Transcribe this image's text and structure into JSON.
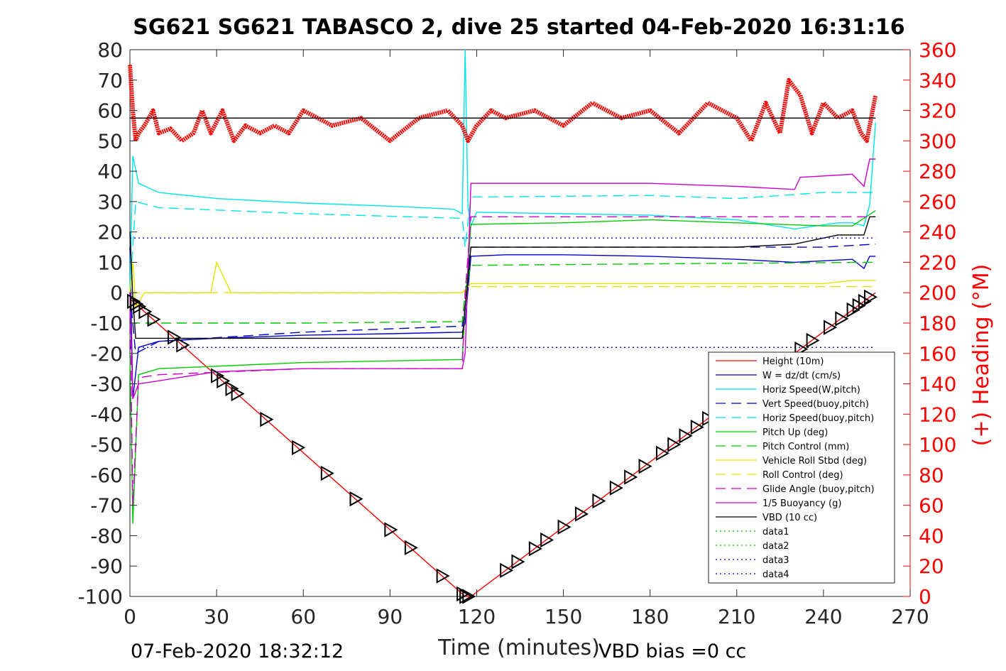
{
  "title": "SG621 SG621 TABASCO 2, dive 25 started 04-Feb-2020 16:31:16",
  "footer": {
    "timestamp": "07-Feb-2020 18:32:12",
    "vbd_bias": "VBD bias =0 cc"
  },
  "colors": {
    "right_axis": "#ff0000",
    "axis": "#262626",
    "red": "#ff0000",
    "blue": "#0000cc",
    "cyan": "#00e5e5",
    "green": "#00cc00",
    "yellow": "#e5e500",
    "magenta": "#cc00cc",
    "black": "#000000"
  },
  "chart_data": {
    "type": "line",
    "title": "SG621 SG621 TABASCO 2, dive 25 started 04-Feb-2020 16:31:16",
    "xlabel": "Time (minutes)",
    "ylabel_right": "(+) Heading (°M)",
    "xlim": [
      0,
      270
    ],
    "ylim": [
      -100,
      80
    ],
    "ylim_right": [
      0,
      360
    ],
    "xticks": [
      "0",
      "30",
      "60",
      "90",
      "120",
      "150",
      "180",
      "210",
      "240",
      "270"
    ],
    "yticks": [
      "80",
      "70",
      "60",
      "50",
      "40",
      "30",
      "20",
      "10",
      "0",
      "-10",
      "-20",
      "-30",
      "-40",
      "-50",
      "-60",
      "-70",
      "-80",
      "-90",
      "-100"
    ],
    "yticks_right": [
      "360",
      "340",
      "320",
      "300",
      "280",
      "260",
      "240",
      "220",
      "200",
      "180",
      "160",
      "140",
      "120",
      "100",
      "80",
      "60",
      "40",
      "20",
      "0"
    ],
    "legend_position": "lower-right",
    "legend": [
      {
        "label": "Height (10m)",
        "color": "#ff0000",
        "dash": "solid"
      },
      {
        "label": "W = dz/dt (cm/s)",
        "color": "#0000cc",
        "dash": "solid"
      },
      {
        "label": "Horiz Speed(W,pitch)",
        "color": "#00e5e5",
        "dash": "solid"
      },
      {
        "label": "Vert Speed(buoy,pitch)",
        "color": "#0000cc",
        "dash": "dashed"
      },
      {
        "label": "Horiz Speed(buoy,pitch)",
        "color": "#00e5e5",
        "dash": "dashed"
      },
      {
        "label": "Pitch Up (deg)",
        "color": "#00cc00",
        "dash": "solid"
      },
      {
        "label": "Pitch Control (mm)",
        "color": "#00cc00",
        "dash": "dashed"
      },
      {
        "label": "Vehicle Roll Stbd (deg)",
        "color": "#e5e500",
        "dash": "solid"
      },
      {
        "label": "Roll Control (deg)",
        "color": "#e5e500",
        "dash": "dashed"
      },
      {
        "label": "Glide Angle (buoy,pitch)",
        "color": "#cc00cc",
        "dash": "dashed"
      },
      {
        "label": "1/5 Buoyancy (g)",
        "color": "#cc00cc",
        "dash": "solid"
      },
      {
        "label": "VBD (10 cc)",
        "color": "#000000",
        "dash": "solid"
      },
      {
        "label": "data1",
        "color": "#00cc00",
        "dash": "dotted"
      },
      {
        "label": "data2",
        "color": "#00cc00",
        "dash": "dotted"
      },
      {
        "label": "data3",
        "color": "#0000cc",
        "dash": "dotted"
      },
      {
        "label": "data4",
        "color": "#0000cc",
        "dash": "dotted"
      }
    ],
    "series": [
      {
        "name": "Height (10m)",
        "axis": "left",
        "color": "#ff0000",
        "dash": "solid",
        "x": [
          0,
          116,
          118,
          258
        ],
        "y": [
          -2,
          -100,
          -100,
          0
        ]
      },
      {
        "name": "W = dz/dt (cm/s)",
        "axis": "left",
        "color": "#0000cc",
        "dash": "solid",
        "x": [
          0,
          1,
          3,
          10,
          30,
          60,
          90,
          115,
          116,
          118,
          130,
          150,
          180,
          210,
          230,
          250,
          254,
          256,
          258
        ],
        "y": [
          15,
          -35,
          -18,
          -16,
          -15,
          -14,
          -13.5,
          -13,
          -10,
          12,
          12.5,
          12.5,
          12,
          11,
          10,
          11,
          8,
          12,
          12
        ]
      },
      {
        "name": "Horiz Speed(W,pitch)",
        "axis": "left",
        "color": "#00e5e5",
        "dash": "solid",
        "x": [
          0,
          1,
          3,
          10,
          30,
          60,
          90,
          112,
          115,
          116,
          117,
          118,
          120,
          150,
          180,
          210,
          230,
          245,
          250,
          254,
          256,
          258
        ],
        "y": [
          0,
          45,
          36,
          33,
          31,
          29.5,
          28.5,
          27.5,
          26,
          80,
          28,
          22,
          26.5,
          26,
          25.5,
          24,
          21,
          23,
          23,
          22,
          29,
          56
        ]
      },
      {
        "name": "Vert Speed(buoy,pitch)",
        "axis": "left",
        "color": "#0000cc",
        "dash": "dashed",
        "x": [
          0,
          2,
          10,
          60,
          115,
          116,
          118,
          180,
          210,
          240,
          258
        ],
        "y": [
          0,
          -20,
          -16,
          -13,
          -11,
          0,
          15,
          15,
          15,
          15,
          16
        ]
      },
      {
        "name": "Horiz Speed(buoy,pitch)",
        "axis": "left",
        "color": "#00e5e5",
        "dash": "dashed",
        "x": [
          0,
          2,
          10,
          60,
          115,
          116,
          118,
          180,
          210,
          240,
          250,
          258
        ],
        "y": [
          0,
          30,
          28,
          26,
          24.5,
          15,
          31.5,
          32,
          31,
          33,
          33,
          33
        ]
      },
      {
        "name": "Pitch Up (deg)",
        "axis": "left",
        "color": "#00cc00",
        "dash": "solid",
        "x": [
          0,
          1,
          3,
          10,
          60,
          115,
          116,
          118,
          150,
          180,
          210,
          240,
          250,
          258
        ],
        "y": [
          -20,
          -76,
          -27,
          -25,
          -23,
          -22,
          -5,
          22.5,
          23,
          24,
          23,
          22,
          22,
          27
        ]
      },
      {
        "name": "Pitch Control (mm)",
        "axis": "left",
        "color": "#00cc00",
        "dash": "dashed",
        "x": [
          0,
          2,
          60,
          115,
          116,
          118,
          180,
          258
        ],
        "y": [
          -10,
          -10,
          -10,
          -9.5,
          0,
          9,
          9.5,
          10
        ]
      },
      {
        "name": "Vehicle Roll Stbd (deg)",
        "axis": "left",
        "color": "#e5e500",
        "dash": "solid",
        "x": [
          0,
          1,
          2,
          5,
          20,
          28,
          30,
          35,
          40,
          60,
          90,
          115,
          118,
          120,
          150,
          180,
          210,
          230,
          240,
          250,
          258
        ],
        "y": [
          0,
          10,
          -5,
          0,
          0,
          0,
          10,
          0,
          0,
          0,
          0,
          0,
          3,
          3,
          3,
          3,
          3,
          3,
          3,
          4,
          4
        ]
      },
      {
        "name": "Roll Control (deg)",
        "axis": "left",
        "color": "#e5e500",
        "dash": "dashed",
        "x": [
          0,
          2,
          60,
          115,
          118,
          150,
          180,
          210,
          258
        ],
        "y": [
          0,
          0,
          0,
          0,
          2,
          2,
          2,
          2,
          2
        ]
      },
      {
        "name": "Glide Angle (buoy,pitch)",
        "axis": "left",
        "color": "#cc00cc",
        "dash": "dashed",
        "x": [
          0,
          1,
          3,
          10,
          60,
          115,
          116,
          118,
          180,
          210,
          250,
          258
        ],
        "y": [
          0,
          -70,
          -28,
          -27,
          -25,
          -25,
          0,
          25,
          25,
          25,
          25,
          25
        ]
      },
      {
        "name": "1/5 Buoyancy (g)",
        "axis": "left",
        "color": "#cc00cc",
        "dash": "solid",
        "x": [
          0,
          1,
          3,
          10,
          30,
          60,
          115,
          116,
          118,
          150,
          180,
          210,
          230,
          232,
          250,
          254,
          256,
          258
        ],
        "y": [
          0,
          -35,
          -30,
          -29,
          -26,
          -25,
          -25,
          -20,
          36,
          36,
          36,
          35,
          34,
          38,
          39,
          35,
          44,
          44
        ]
      },
      {
        "name": "VBD (10 cc)",
        "axis": "left",
        "color": "#000000",
        "dash": "solid",
        "x": [
          0,
          1,
          2,
          115,
          116,
          118,
          130,
          180,
          210,
          230,
          240,
          245,
          250,
          254,
          256,
          258
        ],
        "y": [
          20,
          -2,
          -15,
          -15,
          -5,
          15,
          15,
          15,
          15,
          16,
          18,
          19,
          19,
          19,
          25,
          25
        ]
      },
      {
        "name": "data1",
        "axis": "left",
        "color": "#00cc00",
        "dash": "dotted",
        "x": [
          0,
          258
        ],
        "y": [
          null,
          null
        ]
      },
      {
        "name": "data2",
        "axis": "left",
        "color": "#00cc00",
        "dash": "dotted",
        "x": [
          0,
          258
        ],
        "y": [
          null,
          null
        ]
      },
      {
        "name": "data3",
        "axis": "left",
        "color": "#0000cc",
        "dash": "dotted",
        "x": [
          0,
          258
        ],
        "y": [
          18,
          18
        ]
      },
      {
        "name": "data4",
        "axis": "left",
        "color": "#0000cc",
        "dash": "dotted",
        "x": [
          0,
          258
        ],
        "y": [
          -18,
          -18
        ]
      },
      {
        "name": "Heading",
        "axis": "right",
        "color": "#ff0000",
        "dash": "markers",
        "x": [
          0,
          1,
          2,
          3,
          5,
          8,
          10,
          14,
          18,
          22,
          25,
          28,
          32,
          36,
          40,
          45,
          50,
          55,
          60,
          70,
          80,
          90,
          100,
          110,
          115,
          117,
          120,
          125,
          130,
          140,
          150,
          160,
          170,
          180,
          190,
          200,
          210,
          215,
          220,
          225,
          228,
          232,
          236,
          240,
          245,
          250,
          253,
          255,
          258
        ],
        "y": [
          350,
          320,
          300,
          305,
          310,
          320,
          305,
          308,
          300,
          305,
          320,
          305,
          320,
          300,
          310,
          305,
          310,
          305,
          320,
          310,
          315,
          300,
          315,
          320,
          310,
          300,
          310,
          320,
          315,
          320,
          310,
          325,
          315,
          320,
          305,
          325,
          315,
          300,
          325,
          305,
          340,
          330,
          305,
          325,
          315,
          320,
          305,
          300,
          330
        ]
      },
      {
        "name": "Heading reference",
        "axis": "right",
        "color": "#000000",
        "dash": "solid",
        "x": [
          0,
          258
        ],
        "y": [
          315,
          315
        ]
      }
    ],
    "markers": {
      "description": "black triangle markers along Height series",
      "x": [
        1,
        2,
        3,
        5,
        8,
        15,
        18,
        30,
        32,
        35,
        37,
        47,
        58,
        68,
        78,
        90,
        97,
        108,
        115,
        116,
        117,
        130,
        134,
        140,
        144,
        150,
        156,
        162,
        168,
        173,
        178,
        184,
        188,
        192,
        196,
        200,
        232,
        236,
        242,
        246,
        250,
        252,
        254,
        256
      ]
    },
    "reference_lines": [
      {
        "axis": "left",
        "y": 57.5,
        "x": [
          0,
          258
        ],
        "color": "#000000"
      }
    ]
  }
}
